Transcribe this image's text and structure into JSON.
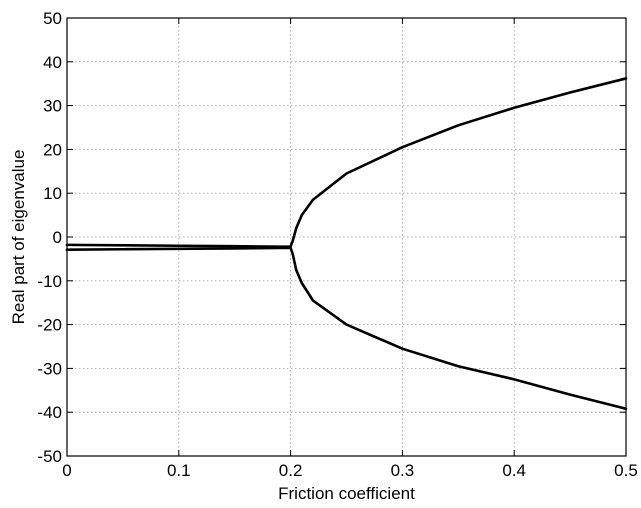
{
  "chart_data": {
    "type": "line",
    "title": "",
    "xlabel": "Friction coefficient",
    "ylabel": "Real part of eigenvalue",
    "xlim": [
      0,
      0.5
    ],
    "ylim": [
      -50,
      50
    ],
    "grid": true,
    "legend": "none",
    "xticks": [
      0,
      0.1,
      0.2,
      0.3,
      0.4,
      0.5
    ],
    "xtick_labels": [
      "0",
      "0.1",
      "0.2",
      "0.3",
      "0.4",
      "0.5"
    ],
    "yticks": [
      -50,
      -40,
      -30,
      -20,
      -10,
      0,
      10,
      20,
      30,
      40,
      50
    ],
    "ytick_labels": [
      "-50",
      "-40",
      "-30",
      "-20",
      "-10",
      "0",
      "10",
      "20",
      "30",
      "40",
      "50"
    ],
    "series": [
      {
        "x": [
          0,
          0.05,
          0.1,
          0.15,
          0.19,
          0.2,
          0.201,
          0.202,
          0.205,
          0.21,
          0.22,
          0.25,
          0.3,
          0.35,
          0.4,
          0.45,
          0.5
        ],
        "y": [
          -1.8,
          -1.9,
          -2.0,
          -2.1,
          -2.2,
          -2.2,
          -1.5,
          -0.8,
          2.0,
          5.0,
          8.5,
          14.5,
          20.5,
          25.5,
          29.5,
          33.0,
          36.2
        ]
      },
      {
        "x": [
          0,
          0.05,
          0.1,
          0.15,
          0.19,
          0.2,
          0.201,
          0.202,
          0.205,
          0.21,
          0.22,
          0.25,
          0.3,
          0.35,
          0.4,
          0.45,
          0.5
        ],
        "y": [
          -2.9,
          -2.8,
          -2.7,
          -2.6,
          -2.5,
          -2.5,
          -3.2,
          -4.0,
          -7.5,
          -10.5,
          -14.5,
          -20.0,
          -25.5,
          -29.5,
          -32.5,
          -36.0,
          -39.2
        ]
      }
    ],
    "colors": {
      "line": "#000000",
      "grid": "#9a9a9a",
      "background": "#ffffff"
    }
  }
}
